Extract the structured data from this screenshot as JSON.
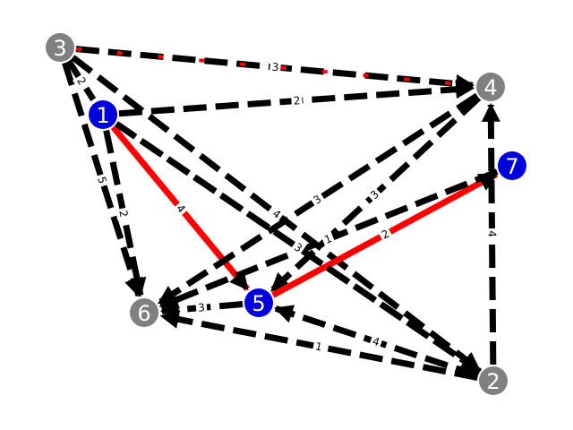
{
  "graph": {
    "colors": {
      "blue": "#0000dd",
      "gray": "#808080",
      "black": "#000000",
      "red": "#ff0000"
    },
    "nodes": [
      {
        "id": "1",
        "label": "1",
        "group": "blue"
      },
      {
        "id": "2",
        "label": "2",
        "group": "gray"
      },
      {
        "id": "3",
        "label": "3",
        "group": "gray"
      },
      {
        "id": "4",
        "label": "4",
        "group": "gray"
      },
      {
        "id": "5",
        "label": "5",
        "group": "blue"
      },
      {
        "id": "6",
        "label": "6",
        "group": "gray"
      },
      {
        "id": "7",
        "label": "7",
        "group": "blue"
      }
    ],
    "edges": [
      {
        "from": "3",
        "to": "4",
        "label": "3",
        "highlight": "red-dashed",
        "arrow": true
      },
      {
        "from": "1",
        "to": "4",
        "label": "2",
        "highlight": "none",
        "arrow": true
      },
      {
        "from": "3",
        "to": "1",
        "label": "2",
        "highlight": "none",
        "arrow": false
      },
      {
        "from": "3",
        "to": "6",
        "label": "5",
        "highlight": "none",
        "arrow": true
      },
      {
        "from": "1",
        "to": "6",
        "label": "2",
        "highlight": "none",
        "arrow": true
      },
      {
        "from": "1",
        "to": "5",
        "label": "4",
        "highlight": "red-solid",
        "arrow": true
      },
      {
        "from": "1",
        "to": "2",
        "label": "1",
        "highlight": "none",
        "arrow": true
      },
      {
        "from": "3",
        "to": "2",
        "label": "4",
        "highlight": "none",
        "arrow": true
      },
      {
        "from": "4",
        "to": "6",
        "label": "3",
        "highlight": "none",
        "arrow": true
      },
      {
        "from": "4",
        "to": "5",
        "label": "3",
        "highlight": "none",
        "arrow": true
      },
      {
        "from": "5",
        "to": "7",
        "label": "2",
        "highlight": "red-solid",
        "arrow": true
      },
      {
        "from": "7",
        "to": "6",
        "label": "1",
        "highlight": "none",
        "arrow": true
      },
      {
        "from": "2",
        "to": "4",
        "label": "4",
        "highlight": "none",
        "arrow": true
      },
      {
        "from": "5",
        "to": "6",
        "label": "3",
        "highlight": "none",
        "arrow": true
      },
      {
        "from": "2",
        "to": "6",
        "label": "1",
        "highlight": "none",
        "arrow": true
      },
      {
        "from": "2",
        "to": "5",
        "label": "4",
        "highlight": "none",
        "arrow": true
      },
      {
        "from": "2",
        "to": "1",
        "label": "3",
        "highlight": "none",
        "arrow": false
      }
    ]
  }
}
